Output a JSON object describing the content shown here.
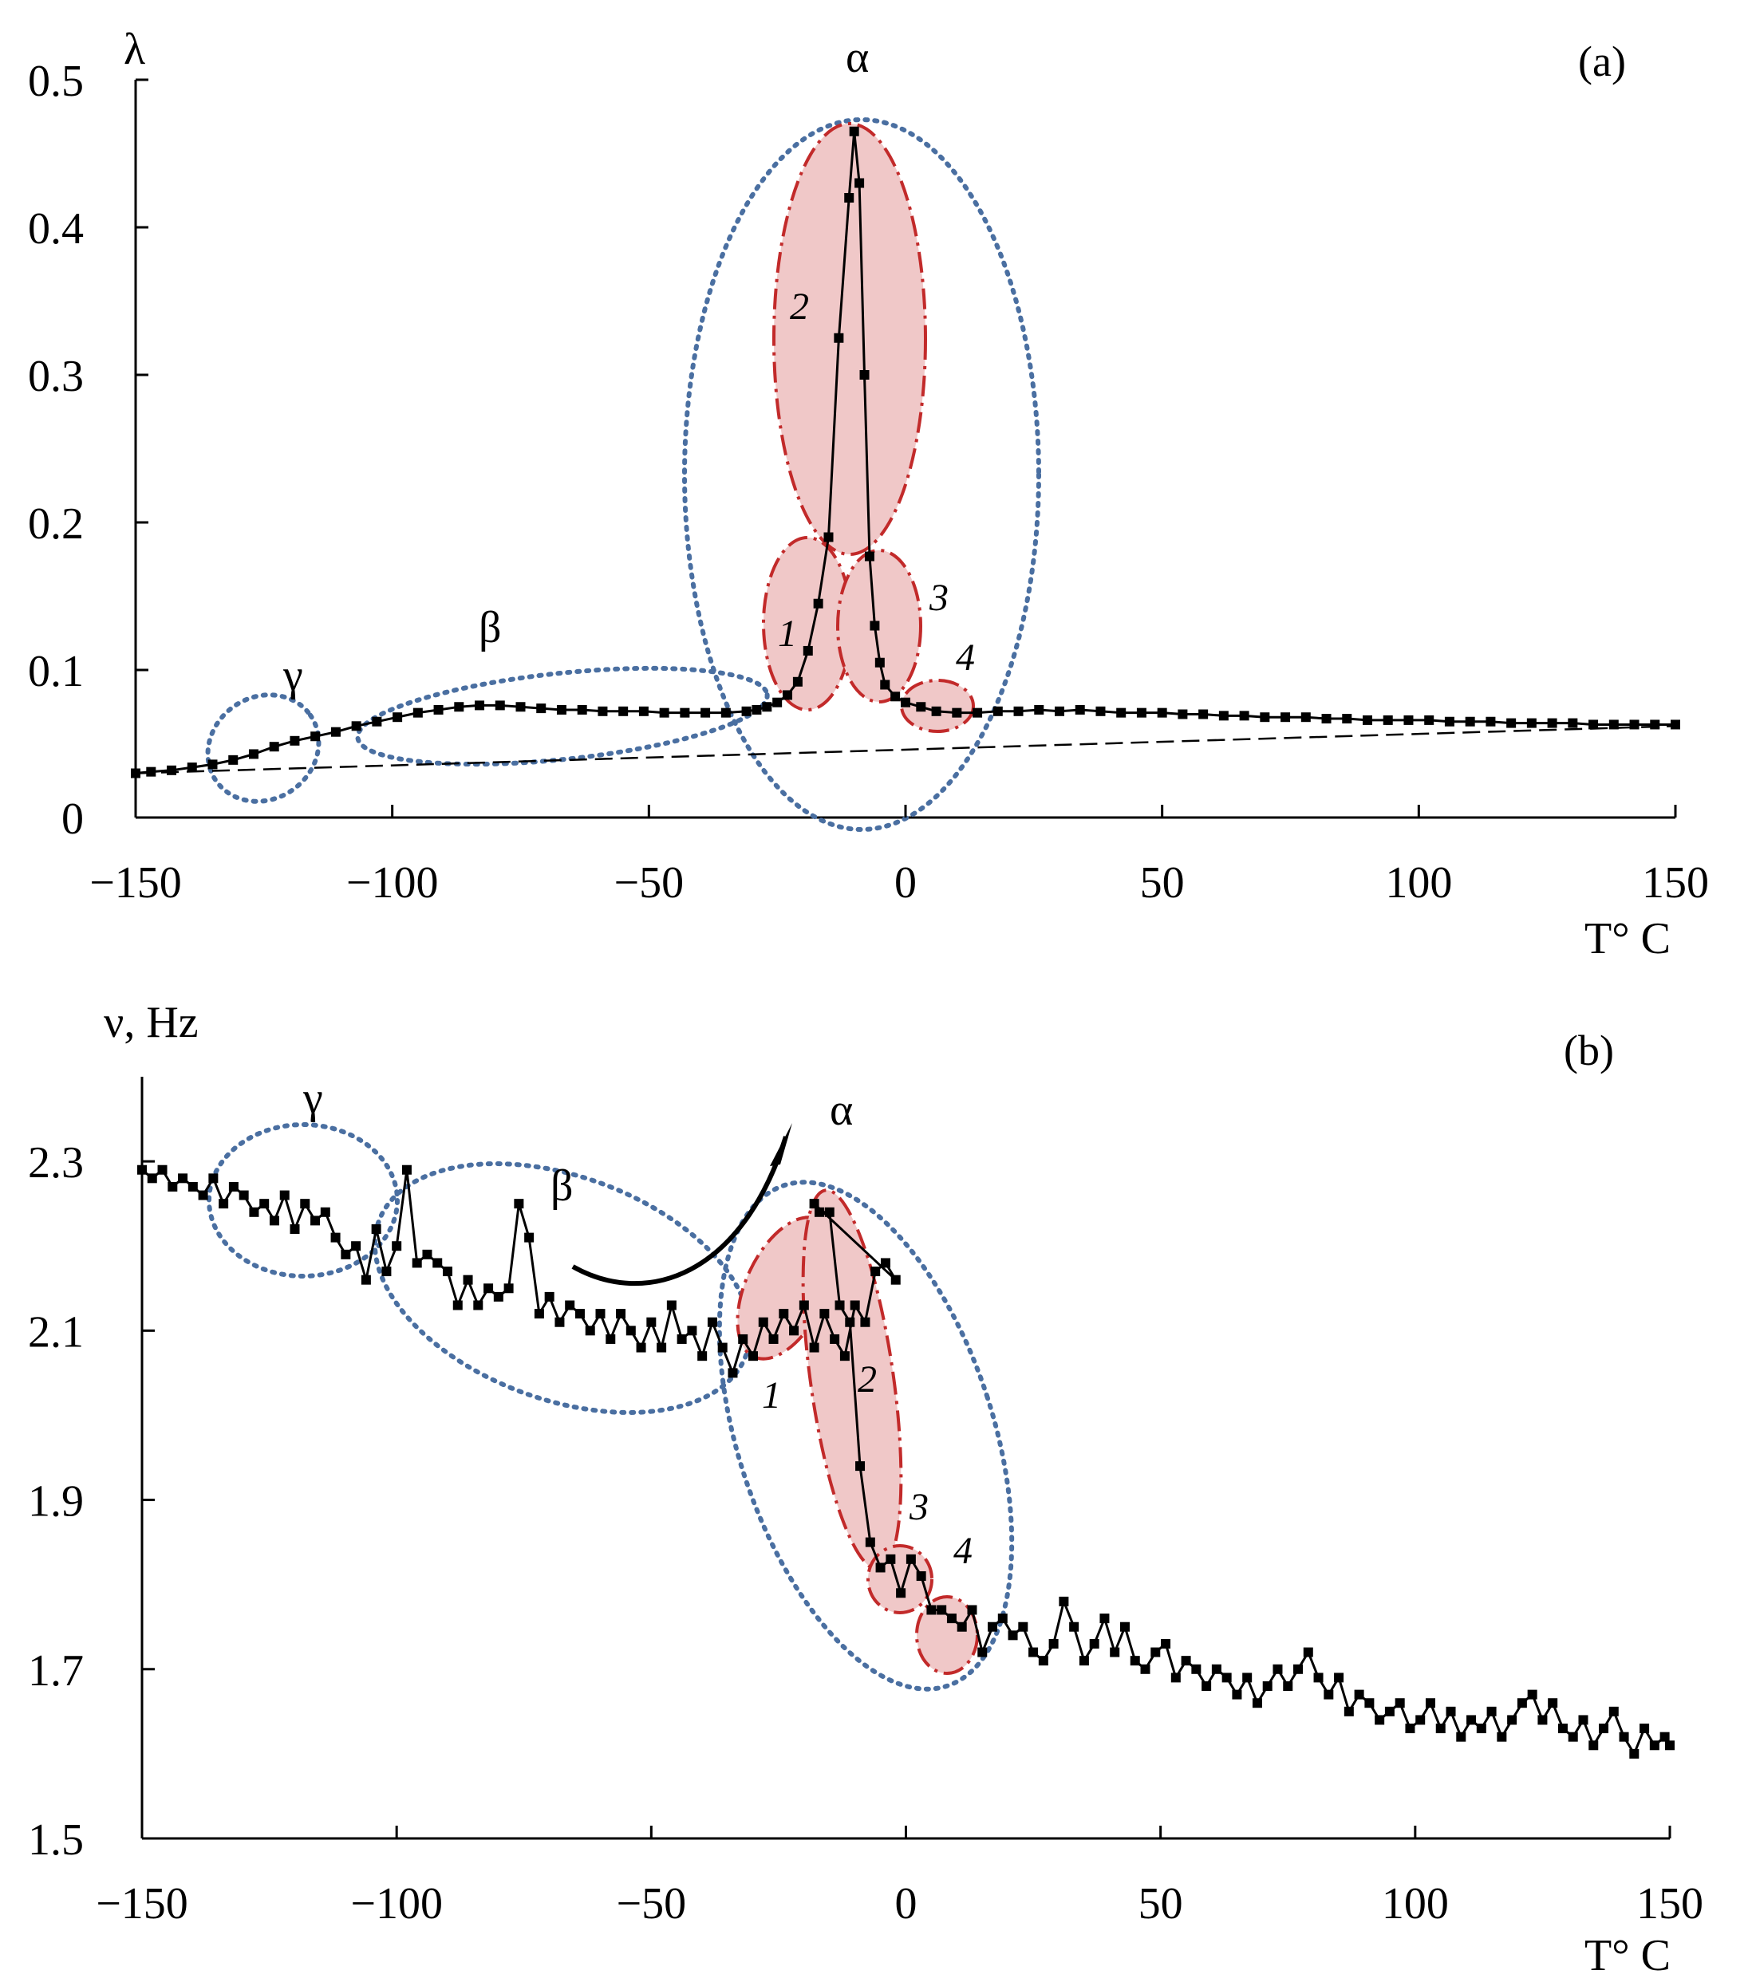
{
  "chart_data": [
    {
      "panel_label": "(a)",
      "type": "line",
      "ylabel": "λ",
      "xlabel": "T° C",
      "xlim": [
        -150,
        150
      ],
      "ylim": [
        0,
        0.5
      ],
      "xticks": [
        "−150",
        "−100",
        "−50",
        "0",
        "50",
        "100",
        "150"
      ],
      "yticks": [
        "0",
        "0.1",
        "0.2",
        "0.3",
        "0.4",
        "0.5"
      ],
      "regions": [
        {
          "label": "γ",
          "center": [
            -119,
            0.05
          ]
        },
        {
          "label": "β",
          "center": [
            -68,
            0.064
          ]
        },
        {
          "label": "α",
          "center": [
            -9,
            0.235
          ]
        }
      ],
      "subregions": [
        "1",
        "2",
        "3",
        "4"
      ],
      "baseline": {
        "x": [
          -150,
          150
        ],
        "y": [
          0.03,
          0.062
        ]
      },
      "series": [
        {
          "name": "λ",
          "points": [
            [
              -150,
              0.03
            ],
            [
              -147,
              0.031
            ],
            [
              -143,
              0.032
            ],
            [
              -139,
              0.034
            ],
            [
              -135,
              0.036
            ],
            [
              -131,
              0.039
            ],
            [
              -127,
              0.043
            ],
            [
              -123,
              0.048
            ],
            [
              -119,
              0.052
            ],
            [
              -115,
              0.055
            ],
            [
              -111,
              0.058
            ],
            [
              -107,
              0.062
            ],
            [
              -103,
              0.065
            ],
            [
              -99,
              0.068
            ],
            [
              -95,
              0.071
            ],
            [
              -91,
              0.073
            ],
            [
              -87,
              0.075
            ],
            [
              -83,
              0.076
            ],
            [
              -79,
              0.076
            ],
            [
              -75,
              0.075
            ],
            [
              -71,
              0.074
            ],
            [
              -67,
              0.073
            ],
            [
              -63,
              0.073
            ],
            [
              -59,
              0.072
            ],
            [
              -55,
              0.072
            ],
            [
              -51,
              0.072
            ],
            [
              -47,
              0.071
            ],
            [
              -43,
              0.071
            ],
            [
              -39,
              0.071
            ],
            [
              -35,
              0.071
            ],
            [
              -31,
              0.072
            ],
            [
              -29,
              0.073
            ],
            [
              -27,
              0.075
            ],
            [
              -25,
              0.078
            ],
            [
              -23,
              0.083
            ],
            [
              -21,
              0.092
            ],
            [
              -19,
              0.113
            ],
            [
              -17,
              0.145
            ],
            [
              -15,
              0.19
            ],
            [
              -13,
              0.325
            ],
            [
              -11,
              0.42
            ],
            [
              -10,
              0.465
            ],
            [
              -9,
              0.43
            ],
            [
              -8,
              0.3
            ],
            [
              -7,
              0.177
            ],
            [
              -6,
              0.13
            ],
            [
              -5,
              0.105
            ],
            [
              -4,
              0.09
            ],
            [
              -2,
              0.082
            ],
            [
              0,
              0.078
            ],
            [
              3,
              0.075
            ],
            [
              6,
              0.072
            ],
            [
              10,
              0.071
            ],
            [
              14,
              0.071
            ],
            [
              18,
              0.072
            ],
            [
              22,
              0.072
            ],
            [
              26,
              0.073
            ],
            [
              30,
              0.072
            ],
            [
              34,
              0.073
            ],
            [
              38,
              0.072
            ],
            [
              42,
              0.071
            ],
            [
              46,
              0.071
            ],
            [
              50,
              0.071
            ],
            [
              54,
              0.07
            ],
            [
              58,
              0.07
            ],
            [
              62,
              0.069
            ],
            [
              66,
              0.069
            ],
            [
              70,
              0.068
            ],
            [
              74,
              0.068
            ],
            [
              78,
              0.068
            ],
            [
              82,
              0.067
            ],
            [
              86,
              0.067
            ],
            [
              90,
              0.066
            ],
            [
              94,
              0.066
            ],
            [
              98,
              0.066
            ],
            [
              102,
              0.066
            ],
            [
              106,
              0.065
            ],
            [
              110,
              0.065
            ],
            [
              114,
              0.065
            ],
            [
              118,
              0.064
            ],
            [
              122,
              0.064
            ],
            [
              126,
              0.064
            ],
            [
              130,
              0.064
            ],
            [
              134,
              0.063
            ],
            [
              138,
              0.063
            ],
            [
              142,
              0.063
            ],
            [
              146,
              0.063
            ],
            [
              150,
              0.063
            ]
          ]
        }
      ]
    },
    {
      "panel_label": "(b)",
      "type": "line",
      "ylabel": "ν, Hz",
      "xlabel": "T° C",
      "xlim": [
        -150,
        150
      ],
      "ylim": [
        1.5,
        2.4
      ],
      "xticks": [
        "−150",
        "−100",
        "−50",
        "0",
        "50",
        "100",
        "150"
      ],
      "yticks": [
        "1.5",
        "1.7",
        "1.9",
        "2.1",
        "2.3"
      ],
      "regions": [
        {
          "label": "γ",
          "center": [
            -119,
            2.23
          ]
        },
        {
          "label": "β",
          "center": [
            -68,
            2.15
          ]
        },
        {
          "label": "α",
          "center": [
            -5,
            1.99
          ]
        }
      ],
      "subregions": [
        "1",
        "2",
        "3",
        "4"
      ],
      "series": [
        {
          "name": "ν",
          "points": [
            [
              -150,
              2.29
            ],
            [
              -148,
              2.28
            ],
            [
              -146,
              2.29
            ],
            [
              -144,
              2.27
            ],
            [
              -142,
              2.28
            ],
            [
              -140,
              2.27
            ],
            [
              -138,
              2.26
            ],
            [
              -136,
              2.28
            ],
            [
              -134,
              2.25
            ],
            [
              -132,
              2.27
            ],
            [
              -130,
              2.26
            ],
            [
              -128,
              2.24
            ],
            [
              -126,
              2.25
            ],
            [
              -124,
              2.23
            ],
            [
              -122,
              2.26
            ],
            [
              -120,
              2.22
            ],
            [
              -118,
              2.25
            ],
            [
              -116,
              2.23
            ],
            [
              -114,
              2.24
            ],
            [
              -112,
              2.21
            ],
            [
              -110,
              2.19
            ],
            [
              -108,
              2.2
            ],
            [
              -106,
              2.16
            ],
            [
              -104,
              2.22
            ],
            [
              -102,
              2.17
            ],
            [
              -100,
              2.2
            ],
            [
              -98,
              2.29
            ],
            [
              -96,
              2.18
            ],
            [
              -94,
              2.19
            ],
            [
              -92,
              2.18
            ],
            [
              -90,
              2.17
            ],
            [
              -88,
              2.13
            ],
            [
              -86,
              2.16
            ],
            [
              -84,
              2.13
            ],
            [
              -82,
              2.15
            ],
            [
              -80,
              2.14
            ],
            [
              -78,
              2.15
            ],
            [
              -76,
              2.25
            ],
            [
              -74,
              2.21
            ],
            [
              -72,
              2.12
            ],
            [
              -70,
              2.14
            ],
            [
              -68,
              2.11
            ],
            [
              -66,
              2.13
            ],
            [
              -64,
              2.12
            ],
            [
              -62,
              2.1
            ],
            [
              -60,
              2.12
            ],
            [
              -58,
              2.09
            ],
            [
              -56,
              2.12
            ],
            [
              -54,
              2.1
            ],
            [
              -52,
              2.08
            ],
            [
              -50,
              2.11
            ],
            [
              -48,
              2.08
            ],
            [
              -46,
              2.13
            ],
            [
              -44,
              2.09
            ],
            [
              -42,
              2.1
            ],
            [
              -40,
              2.07
            ],
            [
              -38,
              2.11
            ],
            [
              -36,
              2.08
            ],
            [
              -34,
              2.05
            ],
            [
              -32,
              2.09
            ],
            [
              -30,
              2.07
            ],
            [
              -28,
              2.11
            ],
            [
              -26,
              2.09
            ],
            [
              -24,
              2.12
            ],
            [
              -22,
              2.1
            ],
            [
              -20,
              2.13
            ],
            [
              -18,
              2.08
            ],
            [
              -16,
              2.12
            ],
            [
              -14,
              2.09
            ],
            [
              -12,
              2.07
            ],
            [
              -10,
              2.13
            ],
            [
              -8,
              2.11
            ],
            [
              -6,
              2.17
            ],
            [
              -4,
              2.18
            ],
            [
              -2,
              2.16
            ],
            [
              -18,
              2.25
            ],
            [
              -17,
              2.24
            ],
            [
              -15,
              2.24
            ],
            [
              -13,
              2.13
            ],
            [
              -11,
              2.11
            ],
            [
              -9,
              1.94
            ],
            [
              -7,
              1.85
            ],
            [
              -5,
              1.82
            ],
            [
              -3,
              1.83
            ],
            [
              -1,
              1.79
            ],
            [
              1,
              1.83
            ],
            [
              3,
              1.81
            ],
            [
              5,
              1.77
            ],
            [
              7,
              1.77
            ],
            [
              9,
              1.76
            ],
            [
              11,
              1.75
            ],
            [
              13,
              1.77
            ],
            [
              15,
              1.72
            ],
            [
              17,
              1.75
            ],
            [
              19,
              1.76
            ],
            [
              21,
              1.74
            ],
            [
              23,
              1.75
            ],
            [
              25,
              1.72
            ],
            [
              27,
              1.71
            ],
            [
              29,
              1.73
            ],
            [
              31,
              1.78
            ],
            [
              33,
              1.75
            ],
            [
              35,
              1.71
            ],
            [
              37,
              1.73
            ],
            [
              39,
              1.76
            ],
            [
              41,
              1.72
            ],
            [
              43,
              1.75
            ],
            [
              45,
              1.71
            ],
            [
              47,
              1.7
            ],
            [
              49,
              1.72
            ],
            [
              51,
              1.73
            ],
            [
              53,
              1.69
            ],
            [
              55,
              1.71
            ],
            [
              57,
              1.7
            ],
            [
              59,
              1.68
            ],
            [
              61,
              1.7
            ],
            [
              63,
              1.69
            ],
            [
              65,
              1.67
            ],
            [
              67,
              1.69
            ],
            [
              69,
              1.66
            ],
            [
              71,
              1.68
            ],
            [
              73,
              1.7
            ],
            [
              75,
              1.68
            ],
            [
              77,
              1.7
            ],
            [
              79,
              1.72
            ],
            [
              81,
              1.69
            ],
            [
              83,
              1.67
            ],
            [
              85,
              1.69
            ],
            [
              87,
              1.65
            ],
            [
              89,
              1.67
            ],
            [
              91,
              1.66
            ],
            [
              93,
              1.64
            ],
            [
              95,
              1.65
            ],
            [
              97,
              1.66
            ],
            [
              99,
              1.63
            ],
            [
              101,
              1.64
            ],
            [
              103,
              1.66
            ],
            [
              105,
              1.63
            ],
            [
              107,
              1.65
            ],
            [
              109,
              1.62
            ],
            [
              111,
              1.64
            ],
            [
              113,
              1.63
            ],
            [
              115,
              1.65
            ],
            [
              117,
              1.62
            ],
            [
              119,
              1.64
            ],
            [
              121,
              1.66
            ],
            [
              123,
              1.67
            ],
            [
              125,
              1.64
            ],
            [
              127,
              1.66
            ],
            [
              129,
              1.63
            ],
            [
              131,
              1.62
            ],
            [
              133,
              1.64
            ],
            [
              135,
              1.61
            ],
            [
              137,
              1.63
            ],
            [
              139,
              1.65
            ],
            [
              141,
              1.62
            ],
            [
              143,
              1.6
            ],
            [
              145,
              1.63
            ],
            [
              147,
              1.61
            ],
            [
              149,
              1.62
            ],
            [
              150,
              1.61
            ]
          ]
        }
      ]
    }
  ]
}
